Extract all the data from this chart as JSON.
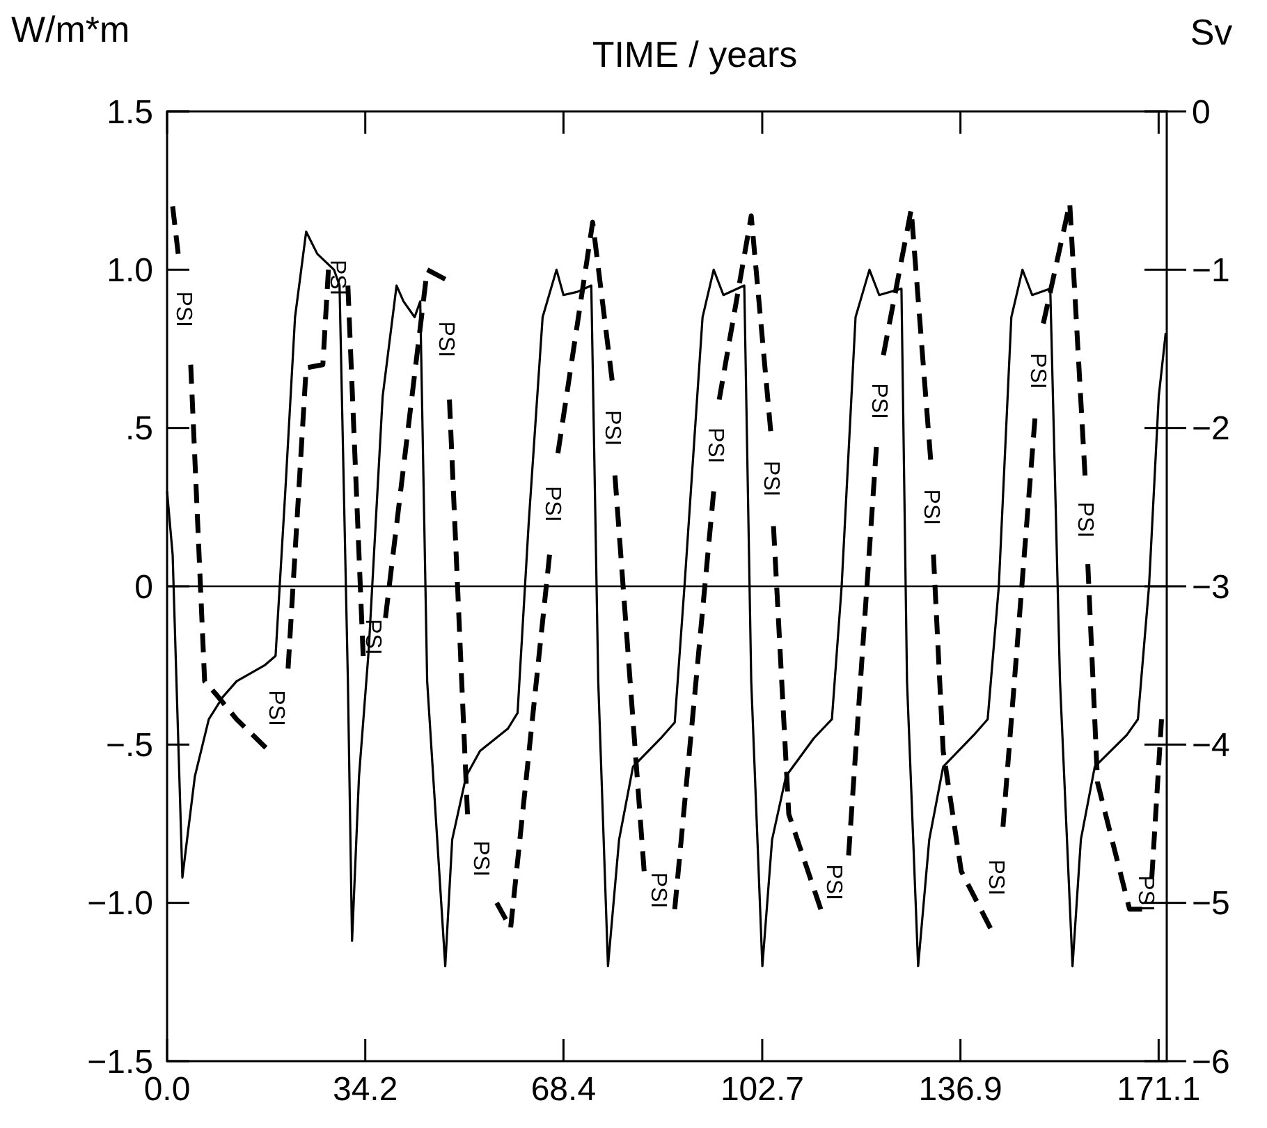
{
  "chart_data": {
    "type": "line",
    "title": "TIME / years",
    "ylabel": "W/m*m",
    "y2label": "Sv",
    "xlim": [
      0,
      172.5
    ],
    "xticks": [
      {
        "value": 0,
        "label": "0.0"
      },
      34.2,
      68.4,
      102.7,
      136.9,
      171.1
    ],
    "ylim": [
      -1.5,
      1.5
    ],
    "yticks": [
      {
        "value": -1.5,
        "label": "−1.5"
      },
      {
        "value": -1,
        "label": "−1.0"
      },
      {
        "value": -0.5,
        "label": "−.5"
      },
      0,
      {
        "value": 0.5,
        "label": ".5"
      },
      {
        "value": 1,
        "label": "1.0"
      },
      1.5
    ],
    "y2lim": [
      -6,
      0
    ],
    "y2ticks": [
      {
        "value": -6,
        "label": "−6"
      },
      {
        "value": -5,
        "label": "−5"
      },
      {
        "value": -4,
        "label": "−4"
      },
      {
        "value": -3,
        "label": "−3"
      },
      {
        "value": -2,
        "label": "−2"
      },
      {
        "value": -1,
        "label": "−1"
      },
      0
    ],
    "grid": false,
    "ref_lines": [
      {
        "axis": "y",
        "value": 0,
        "color": "#000000"
      }
    ],
    "series": [
      {
        "color": "#000000",
        "line_style": "solid",
        "x": [
          0,
          0.96,
          2.64,
          4.8,
          7.2,
          9.6,
          12.0,
          16.8,
          18.72,
          20.4,
          22.08,
          24.0,
          25.92,
          28.8,
          29.76,
          31.2,
          31.92,
          33.12,
          34.8,
          37.2,
          39.6,
          40.8,
          42.72,
          43.68,
          44.88,
          48.0,
          49.2,
          51.6,
          54.0,
          58.8,
          60.48,
          62.4,
          64.8,
          67.2,
          68.4,
          70.8,
          73.2,
          74.4,
          76.08,
          78.0,
          80.4,
          85.2,
          87.6,
          89.28,
          92.4,
          94.32,
          96.0,
          99.6,
          100.8,
          102.72,
          104.4,
          106.8,
          111.6,
          114.72,
          116.4,
          118.8,
          121.2,
          122.88,
          126.72,
          127.68,
          129.6,
          131.52,
          133.92,
          139.2,
          141.6,
          143.52,
          145.68,
          147.6,
          149.28,
          152.4,
          154.08,
          156.24,
          157.68,
          160.08,
          165.6,
          167.52,
          169.44,
          171.12,
          172.32
        ],
        "values": [
          0.3,
          0.1,
          -0.92,
          -0.6,
          -0.42,
          -0.35,
          -0.3,
          -0.25,
          -0.22,
          0.3,
          0.85,
          1.12,
          1.05,
          1.0,
          0.95,
          -0.3,
          -1.12,
          -0.6,
          -0.2,
          0.6,
          0.95,
          0.9,
          0.85,
          0.9,
          -0.3,
          -1.2,
          -0.8,
          -0.6,
          -0.52,
          -0.45,
          -0.4,
          0.2,
          0.85,
          1.0,
          0.92,
          0.93,
          0.95,
          -0.3,
          -1.2,
          -0.8,
          -0.57,
          -0.48,
          -0.43,
          0.0,
          0.85,
          1.0,
          0.92,
          0.95,
          -0.3,
          -1.2,
          -0.8,
          -0.6,
          -0.48,
          -0.42,
          0.0,
          0.85,
          1.0,
          0.92,
          0.94,
          -0.3,
          -1.2,
          -0.8,
          -0.57,
          -0.47,
          -0.42,
          0.0,
          0.85,
          1.0,
          0.92,
          0.94,
          -0.3,
          -1.2,
          -0.8,
          -0.57,
          -0.47,
          -0.42,
          0.0,
          0.6,
          0.8
        ]
      },
      {
        "color": "#000000",
        "line_style": "dashed",
        "axis": "y2",
        "x": [
          0.96,
          1.92
        ],
        "values": [
          -0.6,
          -0.9
        ]
      },
      {
        "color": "#000000",
        "line_style": "dashed",
        "axis": "y2",
        "x": [
          4.08,
          5.28,
          6.48,
          8.4,
          12.0,
          17.04
        ],
        "values": [
          -1.6,
          -2.6,
          -3.6,
          -3.68,
          -3.84,
          -4.02
        ]
      },
      {
        "color": "#000000",
        "line_style": "dashed",
        "axis": "y2",
        "x": [
          20.88,
          24.0,
          26.88,
          27.84
        ],
        "values": [
          -3.52,
          -1.62,
          -1.6,
          -1.0
        ]
      },
      {
        "color": "#000000",
        "line_style": "dashed",
        "axis": "y2",
        "x": [
          31.2,
          33.84
        ],
        "values": [
          -1.1,
          -3.44
        ]
      },
      {
        "color": "#000000",
        "line_style": "dashed",
        "axis": "y2",
        "x": [
          37.68,
          44.88,
          48.0
        ],
        "values": [
          -3.2,
          -1.0,
          -1.06
        ]
      },
      {
        "color": "#000000",
        "line_style": "dashed",
        "axis": "y2",
        "x": [
          48.72,
          51.84
        ],
        "values": [
          -1.82,
          -4.44
        ]
      },
      {
        "color": "#000000",
        "line_style": "dashed",
        "axis": "y2",
        "x": [
          56.88,
          59.28,
          66.0
        ],
        "values": [
          -5.0,
          -5.16,
          -2.8
        ]
      },
      {
        "color": "#000000",
        "line_style": "dashed",
        "axis": "y2",
        "x": [
          67.44,
          73.44,
          76.8
        ],
        "values": [
          -2.16,
          -0.7,
          -1.7
        ]
      },
      {
        "color": "#000000",
        "line_style": "dashed",
        "axis": "y2",
        "x": [
          77.28,
          82.32
        ],
        "values": [
          -2.3,
          -4.8
        ]
      },
      {
        "color": "#000000",
        "line_style": "dashed",
        "axis": "y2",
        "x": [
          87.6,
          94.32
        ],
        "values": [
          -5.04,
          -2.4
        ]
      },
      {
        "color": "#000000",
        "line_style": "dashed",
        "axis": "y2",
        "x": [
          95.28,
          100.8,
          104.16
        ],
        "values": [
          -1.82,
          -0.66,
          -2.02
        ]
      },
      {
        "color": "#000000",
        "line_style": "dashed",
        "axis": "y2",
        "x": [
          104.64,
          107.28,
          112.8
        ],
        "values": [
          -2.62,
          -4.44,
          -5.04
        ]
      },
      {
        "color": "#000000",
        "line_style": "dashed",
        "axis": "y2",
        "x": [
          117.6,
          122.4
        ],
        "values": [
          -4.7,
          -2.12
        ]
      },
      {
        "color": "#000000",
        "line_style": "dashed",
        "axis": "y2",
        "x": [
          123.6,
          128.4,
          131.76
        ],
        "values": [
          -1.54,
          -0.62,
          -2.2
        ]
      },
      {
        "color": "#000000",
        "line_style": "dashed",
        "axis": "y2",
        "x": [
          132.24,
          133.92,
          137.04,
          142.08
        ],
        "values": [
          -2.8,
          -4.04,
          -4.8,
          -5.16
        ]
      },
      {
        "color": "#000000",
        "line_style": "dashed",
        "axis": "y2",
        "x": [
          144.24,
          149.76
        ],
        "values": [
          -4.52,
          -1.94
        ]
      },
      {
        "color": "#000000",
        "line_style": "dashed",
        "axis": "y2",
        "x": [
          151.2,
          155.76,
          158.4
        ],
        "values": [
          -1.34,
          -0.58,
          -2.3
        ]
      },
      {
        "color": "#000000",
        "line_style": "dashed",
        "axis": "y2",
        "x": [
          158.88,
          160.56,
          166.08,
          168.24
        ],
        "values": [
          -2.86,
          -4.24,
          -5.04,
          -5.04
        ]
      },
      {
        "color": "#000000",
        "line_style": "dashed",
        "axis": "y2",
        "x": [
          169.92,
          171.6
        ],
        "values": [
          -4.84,
          -3.84
        ]
      }
    ],
    "annotations": [
      "PSI",
      "PSI",
      "PSI",
      "PSI",
      "PSI",
      "PSI",
      "PSI",
      "PSI",
      "PSI",
      "PSI",
      "PSI",
      "PSI",
      "PSI",
      "PSI",
      "PSI",
      "PSI",
      "PSI",
      "PSI"
    ]
  }
}
